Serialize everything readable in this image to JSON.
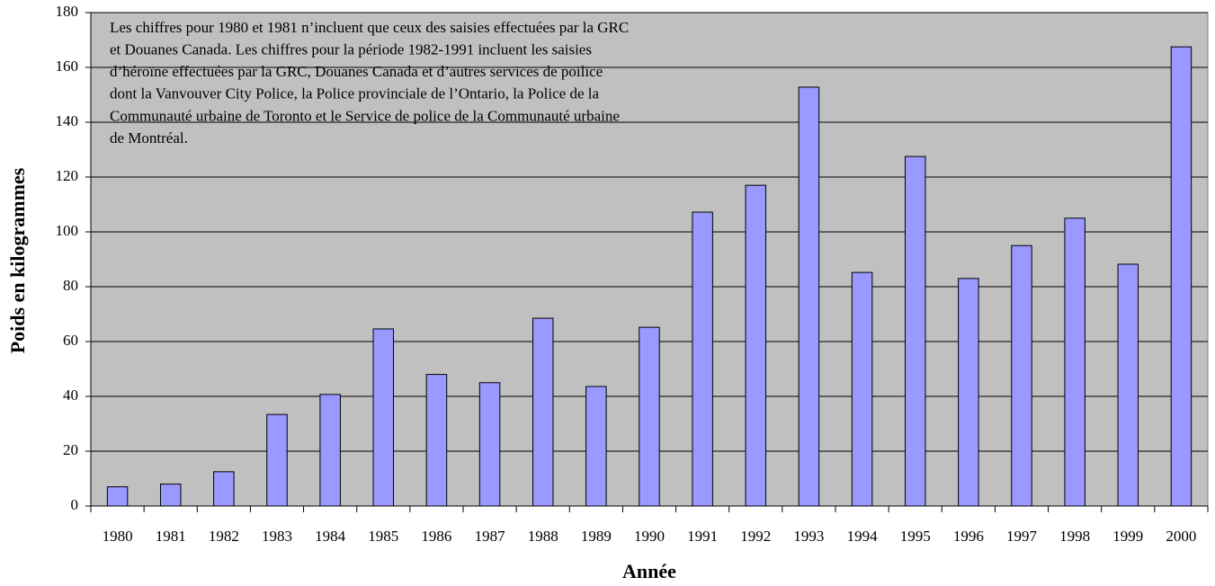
{
  "chart_data": {
    "type": "bar",
    "x_label": "Année",
    "y_label": "Poids en kilogrammes",
    "annotation": [
      "Les chiffres pour 1980 et 1981 n’incluent que ceux des saisies effectuées par la GRC",
      "et Douanes Canada.  Les chiffres pour la période 1982-1991 incluent les saisies",
      "d’héroïne effectuées par la GRC, Douanes Canada et d’autres services de poilice",
      "dont la Vanvouver City Police, la Police provinciale de l’Ontario, la Police de la",
      "Communauté urbaine de Toronto et le Service de police de la Communauté urbaine",
      "de Montréal."
    ],
    "categories": [
      "1980",
      "1981",
      "1982",
      "1983",
      "1984",
      "1985",
      "1986",
      "1987",
      "1988",
      "1989",
      "1990",
      "1991",
      "1992",
      "1993",
      "1994",
      "1995",
      "1996",
      "1997",
      "1998",
      "1999",
      "2000"
    ],
    "values": [
      7,
      8,
      12.5,
      33.4,
      40.7,
      64.6,
      48,
      45,
      68.5,
      43.6,
      65.2,
      107.2,
      117,
      152.8,
      85.2,
      127.5,
      83,
      95,
      105,
      88.2,
      167.5
    ],
    "color": "#9999ff",
    "background": "#c0c0c0",
    "ylim": [
      0,
      180
    ],
    "yticks": [
      0,
      20,
      40,
      60,
      80,
      100,
      120,
      140,
      160,
      180
    ],
    "grid": true
  }
}
